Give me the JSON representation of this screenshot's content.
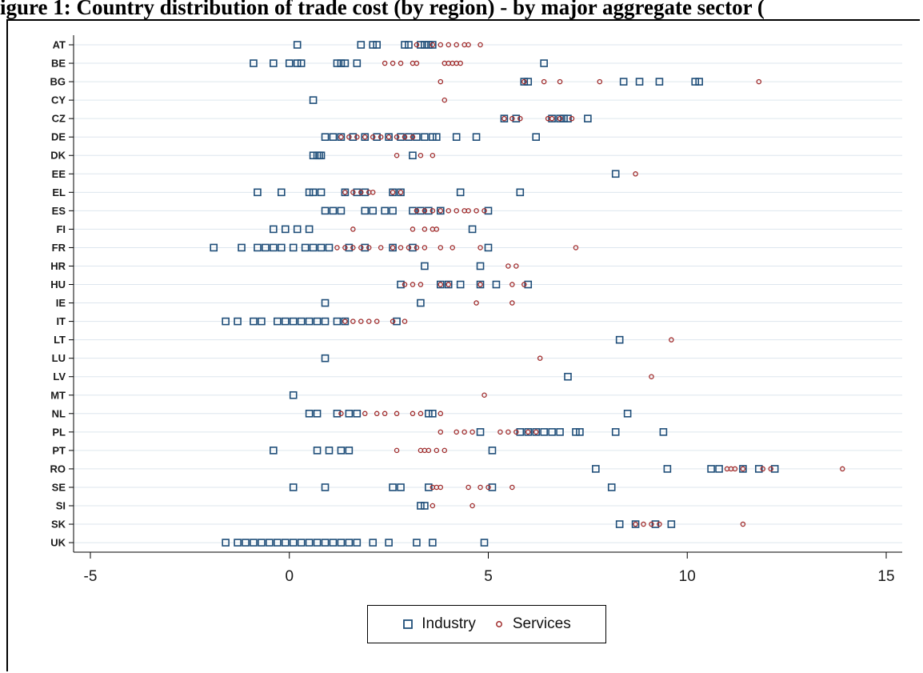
{
  "title": "igure 1: Country distribution of trade cost (by region) - by major aggregate sector (",
  "colors": {
    "industry": "#1f4e79",
    "services": "#a02c2c",
    "grid": "#dde6ee",
    "axis": "#000000"
  },
  "chart_data": {
    "type": "scatter",
    "orientation": "horizontal-dot",
    "title": "",
    "xlabel": "",
    "ylabel": "",
    "xlim": [
      -5,
      15
    ],
    "xticks": [
      -5,
      0,
      5,
      10,
      15
    ],
    "grid": "horizontal",
    "legend_position": "bottom-center",
    "categories": [
      "AT",
      "BE",
      "BG",
      "CY",
      "CZ",
      "DE",
      "DK",
      "EE",
      "EL",
      "ES",
      "FI",
      "FR",
      "HR",
      "HU",
      "IE",
      "IT",
      "LT",
      "LU",
      "LV",
      "MT",
      "NL",
      "PL",
      "PT",
      "RO",
      "SE",
      "SI",
      "SK",
      "UK"
    ],
    "series": [
      {
        "name": "Industry",
        "marker": "square",
        "values": {
          "AT": [
            0.2,
            1.8,
            2.1,
            2.2,
            2.9,
            3.0,
            3.3,
            3.4,
            3.5,
            3.6
          ],
          "BE": [
            -0.9,
            -0.4,
            0.0,
            0.2,
            0.3,
            1.2,
            1.3,
            1.4,
            1.7,
            6.4
          ],
          "BG": [
            5.9,
            6.0,
            8.4,
            8.8,
            9.3,
            10.2,
            10.3
          ],
          "CY": [
            0.6
          ],
          "CZ": [
            5.4,
            5.7,
            6.6,
            6.8,
            6.9,
            7.0,
            7.5
          ],
          "DE": [
            0.9,
            1.1,
            1.3,
            1.6,
            1.9,
            2.2,
            2.5,
            2.8,
            3.0,
            3.2,
            3.4,
            3.6,
            3.7,
            4.2,
            4.7,
            6.2
          ],
          "DK": [
            0.6,
            0.7,
            0.75,
            0.8,
            3.1
          ],
          "EE": [
            8.2
          ],
          "EL": [
            -0.8,
            -0.2,
            0.5,
            0.6,
            0.8,
            1.4,
            1.7,
            1.9,
            2.6,
            2.8,
            4.3,
            5.8
          ],
          "ES": [
            0.9,
            1.1,
            1.3,
            1.9,
            2.1,
            2.4,
            2.6,
            3.1,
            3.3,
            3.5,
            3.8,
            5.0
          ],
          "FI": [
            -0.4,
            -0.1,
            0.2,
            0.5,
            4.6
          ],
          "FR": [
            -1.9,
            -1.2,
            -0.8,
            -0.6,
            -0.4,
            -0.2,
            0.1,
            0.4,
            0.6,
            0.8,
            1.0,
            1.5,
            1.9,
            2.6,
            3.1,
            5.0
          ],
          "HR": [
            3.4,
            4.8
          ],
          "HU": [
            2.8,
            3.8,
            4.0,
            4.3,
            4.8,
            5.2,
            6.0
          ],
          "IE": [
            0.9,
            3.3
          ],
          "IT": [
            -1.6,
            -1.3,
            -0.9,
            -0.7,
            -0.3,
            -0.1,
            0.1,
            0.3,
            0.5,
            0.7,
            0.9,
            1.2,
            1.4,
            2.7
          ],
          "LT": [
            8.3
          ],
          "LU": [
            0.9
          ],
          "LV": [
            7.0
          ],
          "MT": [
            0.1
          ],
          "NL": [
            0.5,
            0.7,
            1.2,
            1.5,
            1.7,
            3.5,
            3.6,
            8.5
          ],
          "PL": [
            4.8,
            5.8,
            6.0,
            6.2,
            6.4,
            6.6,
            6.8,
            7.2,
            7.3,
            8.2,
            9.4
          ],
          "PT": [
            -0.4,
            0.7,
            1.0,
            1.3,
            1.5,
            5.1
          ],
          "RO": [
            7.7,
            9.5,
            10.6,
            10.8,
            11.4,
            11.8,
            12.2
          ],
          "SE": [
            0.1,
            0.9,
            2.6,
            2.8,
            3.5,
            5.1,
            8.1
          ],
          "SI": [
            3.3,
            3.4
          ],
          "SK": [
            8.3,
            8.7,
            9.2,
            9.6
          ],
          "UK": [
            -1.6,
            -1.3,
            -1.1,
            -0.9,
            -0.7,
            -0.5,
            -0.3,
            -0.1,
            0.1,
            0.3,
            0.5,
            0.7,
            0.9,
            1.1,
            1.3,
            1.5,
            1.7,
            2.1,
            2.5,
            3.2,
            3.6,
            4.9
          ]
        }
      },
      {
        "name": "Services",
        "marker": "circle",
        "values": {
          "AT": [
            3.2,
            3.6,
            3.8,
            4.0,
            4.2,
            4.4,
            4.5,
            4.8
          ],
          "BE": [
            2.4,
            2.6,
            2.8,
            3.1,
            3.2,
            3.9,
            4.0,
            4.1,
            4.2,
            4.3
          ],
          "BG": [
            3.8,
            5.9,
            6.4,
            6.8,
            7.8,
            11.8
          ],
          "CY": [
            3.9
          ],
          "CZ": [
            5.4,
            5.6,
            5.8,
            6.5,
            6.6,
            6.8,
            7.1
          ],
          "DE": [
            1.3,
            1.5,
            1.7,
            1.9,
            2.1,
            2.3,
            2.5,
            2.7,
            2.9,
            3.1
          ],
          "DK": [
            2.7,
            3.3,
            3.6
          ],
          "EE": [
            8.7
          ],
          "EL": [
            1.4,
            1.6,
            1.8,
            2.0,
            2.1,
            2.6,
            2.8
          ],
          "ES": [
            3.2,
            3.4,
            3.6,
            3.8,
            4.0,
            4.2,
            4.4,
            4.5,
            4.7,
            4.9
          ],
          "FI": [
            1.6,
            3.1,
            3.4,
            3.6,
            3.7
          ],
          "FR": [
            1.2,
            1.4,
            1.6,
            1.8,
            2.0,
            2.3,
            2.6,
            2.8,
            3.0,
            3.2,
            3.4,
            3.8,
            4.1,
            4.8,
            7.2
          ],
          "HR": [
            5.5,
            5.7
          ],
          "HU": [
            2.9,
            3.1,
            3.3,
            3.8,
            4.0,
            4.8,
            5.6,
            5.9
          ],
          "IE": [
            4.7,
            5.6
          ],
          "IT": [
            1.4,
            1.6,
            1.8,
            2.0,
            2.2,
            2.6,
            2.9
          ],
          "LT": [
            9.6
          ],
          "LU": [
            6.3
          ],
          "LV": [
            9.1
          ],
          "MT": [
            4.9
          ],
          "NL": [
            1.3,
            1.9,
            2.2,
            2.4,
            2.7,
            3.1,
            3.3,
            3.8
          ],
          "PL": [
            3.8,
            4.2,
            4.4,
            4.6,
            5.3,
            5.5,
            5.7,
            6.0,
            6.2
          ],
          "PT": [
            2.7,
            3.3,
            3.4,
            3.5,
            3.7,
            3.9
          ],
          "RO": [
            11.0,
            11.1,
            11.2,
            11.4,
            11.9,
            12.1,
            13.9
          ],
          "SE": [
            3.6,
            3.7,
            3.8,
            4.5,
            4.8,
            5.0,
            5.6
          ],
          "SI": [
            3.6,
            4.6
          ],
          "SK": [
            8.7,
            8.9,
            9.1,
            9.3,
            11.4
          ],
          "UK": []
        }
      }
    ]
  }
}
